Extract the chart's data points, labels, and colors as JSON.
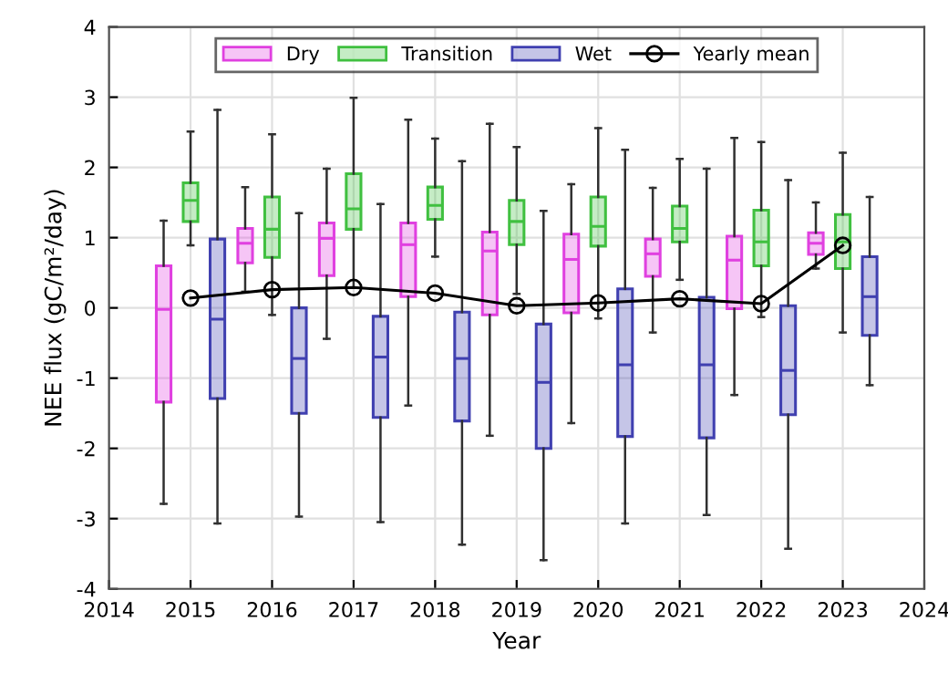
{
  "chart_data": {
    "type": "box",
    "xlabel": "Year",
    "ylabel": "NEE flux (gC/m²/day)",
    "xlim": [
      2014,
      2024
    ],
    "ylim": [
      -4,
      4
    ],
    "xticks": [
      2014,
      2015,
      2016,
      2017,
      2018,
      2019,
      2020,
      2021,
      2022,
      2023,
      2024
    ],
    "yticks": [
      -4,
      -3,
      -2,
      -1,
      0,
      1,
      2,
      3,
      4
    ],
    "grid": true,
    "legend": "top",
    "series": [
      {
        "name": "Dry",
        "color": "#e040e0",
        "x": [
          2014.67,
          2015.67,
          2016.67,
          2017.67,
          2018.67,
          2019.67,
          2020.67,
          2021.67,
          2022.67
        ],
        "boxes": [
          {
            "low": -2.79,
            "q1": -1.34,
            "median": -0.02,
            "q3": 0.6,
            "high": 1.24
          },
          {
            "low": 0.23,
            "q1": 0.64,
            "median": 0.92,
            "q3": 1.13,
            "high": 1.72
          },
          {
            "low": -0.44,
            "q1": 0.46,
            "median": 0.99,
            "q3": 1.21,
            "high": 1.98
          },
          {
            "low": -1.39,
            "q1": 0.16,
            "median": 0.9,
            "q3": 1.21,
            "high": 2.68
          },
          {
            "low": -1.82,
            "q1": -0.1,
            "median": 0.81,
            "q3": 1.08,
            "high": 2.62
          },
          {
            "low": -1.64,
            "q1": -0.07,
            "median": 0.69,
            "q3": 1.05,
            "high": 1.76
          },
          {
            "low": -0.35,
            "q1": 0.45,
            "median": 0.77,
            "q3": 0.98,
            "high": 1.71
          },
          {
            "low": -1.24,
            "q1": -0.01,
            "median": 0.68,
            "q3": 1.02,
            "high": 2.42
          },
          {
            "low": 0.56,
            "q1": 0.76,
            "median": 0.92,
            "q3": 1.07,
            "high": 1.5
          }
        ]
      },
      {
        "name": "Transition",
        "color": "#40c040",
        "x": [
          2015,
          2016,
          2017,
          2018,
          2019,
          2020,
          2021,
          2022,
          2023
        ],
        "boxes": [
          {
            "low": 0.89,
            "q1": 1.23,
            "median": 1.53,
            "q3": 1.78,
            "high": 2.51
          },
          {
            "low": -0.1,
            "q1": 0.72,
            "median": 1.12,
            "q3": 1.58,
            "high": 2.47
          },
          {
            "low": 0.29,
            "q1": 1.12,
            "median": 1.41,
            "q3": 1.91,
            "high": 2.99
          },
          {
            "low": 0.73,
            "q1": 1.26,
            "median": 1.46,
            "q3": 1.72,
            "high": 2.41
          },
          {
            "low": 0.2,
            "q1": 0.9,
            "median": 1.23,
            "q3": 1.53,
            "high": 2.29
          },
          {
            "low": -0.15,
            "q1": 0.88,
            "median": 1.16,
            "q3": 1.58,
            "high": 2.56
          },
          {
            "low": 0.4,
            "q1": 0.94,
            "median": 1.13,
            "q3": 1.45,
            "high": 2.12
          },
          {
            "low": -0.13,
            "q1": 0.6,
            "median": 0.94,
            "q3": 1.39,
            "high": 2.36
          },
          {
            "low": -0.35,
            "q1": 0.56,
            "median": 0.94,
            "q3": 1.33,
            "high": 2.21
          }
        ]
      },
      {
        "name": "Wet",
        "color": "#4040b0",
        "x": [
          2015.33,
          2016.33,
          2017.33,
          2018.33,
          2019.33,
          2020.33,
          2021.33,
          2022.33,
          2023.33
        ],
        "boxes": [
          {
            "low": -3.07,
            "q1": -1.29,
            "median": -0.16,
            "q3": 0.98,
            "high": 2.82
          },
          {
            "low": -2.97,
            "q1": -1.5,
            "median": -0.72,
            "q3": 0.0,
            "high": 1.35
          },
          {
            "low": -3.05,
            "q1": -1.56,
            "median": -0.7,
            "q3": -0.12,
            "high": 1.48
          },
          {
            "low": -3.37,
            "q1": -1.61,
            "median": -0.72,
            "q3": -0.06,
            "high": 2.09
          },
          {
            "low": -3.59,
            "q1": -2.0,
            "median": -1.06,
            "q3": -0.23,
            "high": 1.38
          },
          {
            "low": -3.07,
            "q1": -1.83,
            "median": -0.81,
            "q3": 0.27,
            "high": 2.25
          },
          {
            "low": -2.95,
            "q1": -1.85,
            "median": -0.81,
            "q3": 0.15,
            "high": 1.98
          },
          {
            "low": -3.43,
            "q1": -1.52,
            "median": -0.89,
            "q3": 0.03,
            "high": 1.82
          },
          {
            "low": -1.1,
            "q1": -0.39,
            "median": 0.16,
            "q3": 0.73,
            "high": 1.58
          }
        ]
      },
      {
        "name": "Yearly mean",
        "type": "line",
        "color": "#000000",
        "marker": "circle",
        "x": [
          2015,
          2016,
          2017,
          2018,
          2019,
          2020,
          2021,
          2022,
          2023
        ],
        "values": [
          0.14,
          0.26,
          0.29,
          0.21,
          0.03,
          0.07,
          0.13,
          0.06,
          0.89
        ]
      }
    ]
  }
}
